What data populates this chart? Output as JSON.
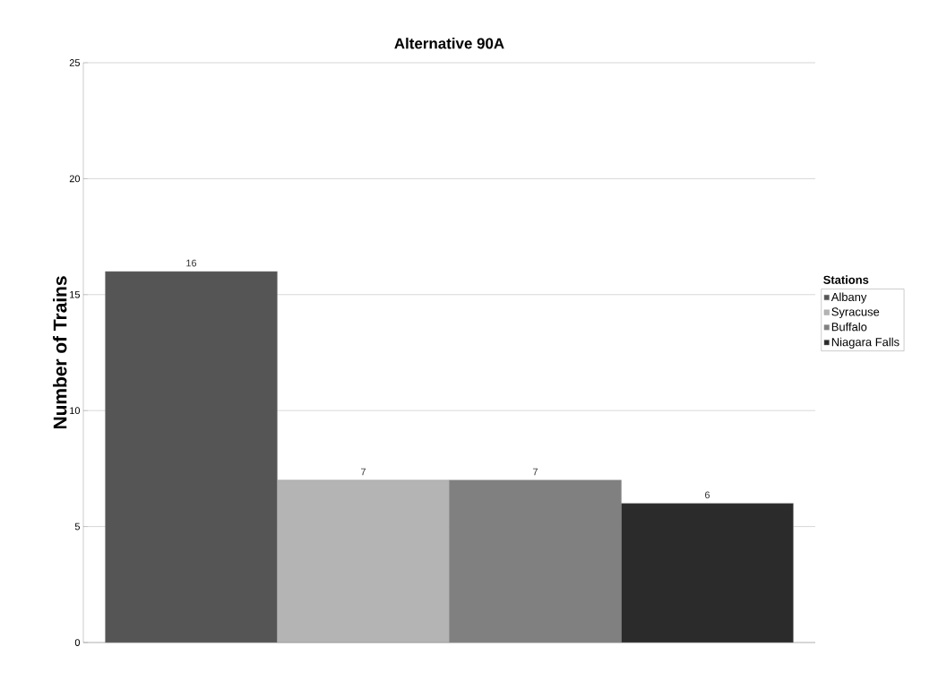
{
  "chart_data": {
    "type": "bar",
    "title": "Alternative 90A",
    "ylabel": "Number of Trains",
    "legend_title": "Stations",
    "categories": [
      null
    ],
    "series": [
      {
        "name": "Albany",
        "color": "#555555",
        "values": [
          16
        ]
      },
      {
        "name": "Syracuse",
        "color": "#b4b4b4",
        "values": [
          7
        ]
      },
      {
        "name": "Buffalo",
        "color": "#808080",
        "values": [
          7
        ]
      },
      {
        "name": "Niagara Falls",
        "color": "#2b2b2b",
        "values": [
          6
        ]
      }
    ],
    "ylim": [
      0,
      25
    ],
    "yticks": [
      0,
      5,
      10,
      15,
      20,
      25
    ],
    "grid": "y",
    "legend": "right",
    "data_labels": true
  }
}
